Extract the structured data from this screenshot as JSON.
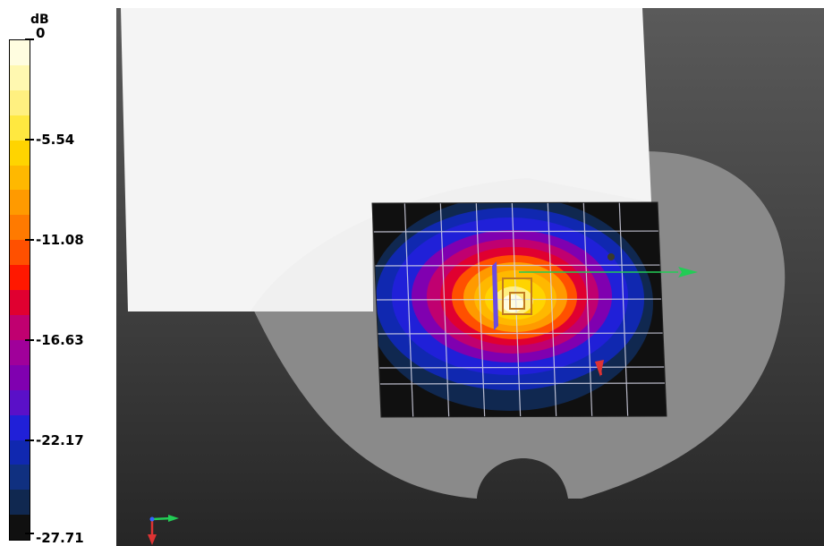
{
  "legend": {
    "unit": "dB",
    "ticks": [
      "0",
      "-5.54",
      "-11.08",
      "-16.63",
      "-22.17",
      "-27.71"
    ],
    "colors": [
      "#fffde0",
      "#fff8b0",
      "#fff080",
      "#ffe840",
      "#ffd400",
      "#ffb800",
      "#ff9a00",
      "#ff7a00",
      "#ff5000",
      "#ff1800",
      "#e00030",
      "#c00070",
      "#a0009a",
      "#8000b0",
      "#5a10c8",
      "#2020d8",
      "#1028b0",
      "#103080",
      "#102850",
      "#101010"
    ]
  },
  "viewport": {
    "colors": {
      "phantom": "#8a8a8a",
      "plane": "#f4f4f4",
      "background": "#3c3c3c",
      "grid_line": "#d8d8e8",
      "axis_green": "#22cc55",
      "axis_red": "#dd3333"
    },
    "icons": [
      "green-axis-arrow-icon",
      "red-axis-arrow-icon",
      "orientation-triad-icon"
    ]
  }
}
